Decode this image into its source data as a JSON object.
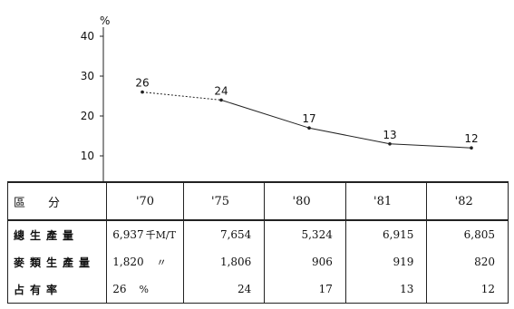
{
  "chart_data": {
    "type": "line",
    "ylabel": "%",
    "ylim": [
      0,
      40
    ],
    "yticks": [
      10,
      20,
      30,
      40
    ],
    "x": [
      "'70",
      "'75",
      "'80",
      "'81",
      "'82"
    ],
    "series": [
      {
        "values": [
          26,
          24,
          17,
          13,
          12
        ]
      }
    ],
    "data_labels": [
      "26",
      "24",
      "17",
      "13",
      "12"
    ]
  },
  "table": {
    "header": {
      "label": "區　分",
      "years": [
        "'70",
        "'75",
        "'80",
        "'81",
        "'82"
      ]
    },
    "rows": [
      {
        "label": "總生產量",
        "values": [
          "6,937",
          "7,654",
          "5,324",
          "6,915",
          "6,805"
        ],
        "unit": "千M/T"
      },
      {
        "label": "麥類生產量",
        "values": [
          "1,820",
          "1,806",
          "906",
          "919",
          "820"
        ],
        "unit": "〃"
      },
      {
        "label": "占有率",
        "values": [
          "26",
          "24",
          "17",
          "13",
          "12"
        ],
        "unit": "%"
      }
    ]
  }
}
